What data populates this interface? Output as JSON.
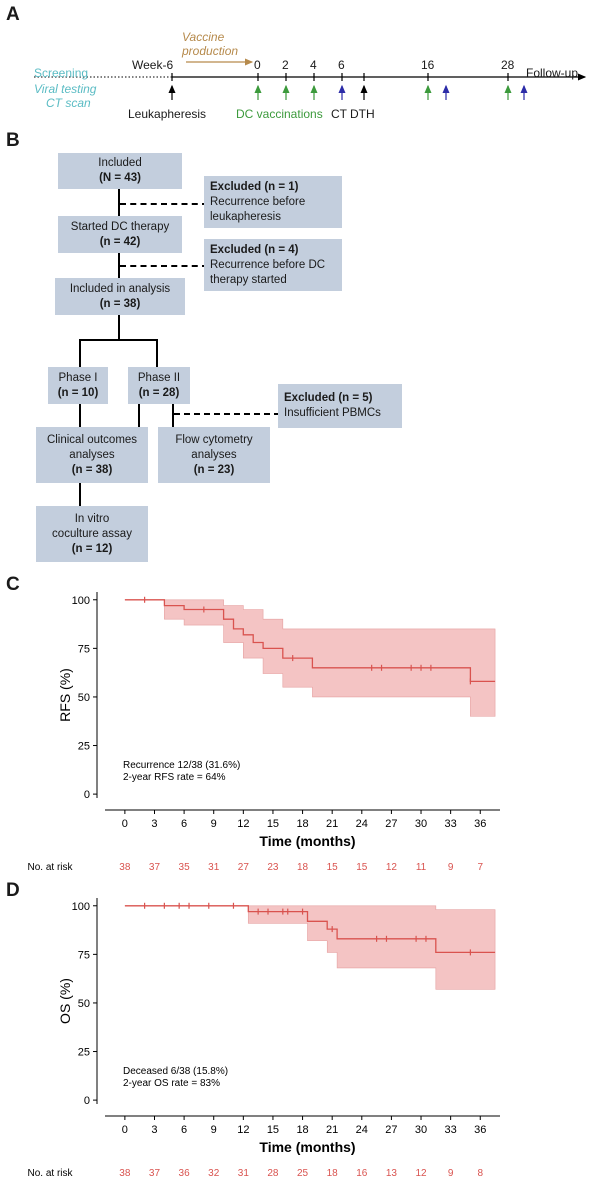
{
  "panels": {
    "a": "A",
    "b": "B",
    "c": "C",
    "d": "D"
  },
  "timeline": {
    "screening": "Screening",
    "viral_testing": "Viral testing",
    "ct_scan": "CT scan",
    "vaccine_production": "Vaccine\nproduction",
    "week6": "Week-6",
    "ticks": [
      "0",
      "2",
      "4",
      "6",
      "16",
      "28"
    ],
    "follow_up": "Follow-up",
    "leukapheresis": "Leukapheresis",
    "dc_vaccinations": "DC vaccinations",
    "ct": "CT",
    "dth": "DTH",
    "colors": {
      "screening": "#5bbcc4",
      "vaccine": "#b68a4c",
      "dc": "#3c9a3c",
      "ct": "#2c2ca8",
      "black": "#000000"
    }
  },
  "flow": {
    "included": {
      "line1": "Included",
      "line2": "(N = 43)"
    },
    "excluded1": {
      "head": "Excluded (n = 1)",
      "line1": "Recurrence before",
      "line2": "leukapheresis"
    },
    "started": {
      "line1": "Started DC therapy",
      "line2": "(n = 42)"
    },
    "excluded2": {
      "head": "Excluded (n = 4)",
      "line1": "Recurrence before DC",
      "line2": "therapy started"
    },
    "analysis": {
      "line1": "Included in analysis",
      "line2": "(n = 38)"
    },
    "phase1": {
      "line1": "Phase I",
      "line2": "(n = 10)"
    },
    "phase2": {
      "line1": "Phase II",
      "line2": "(n = 28)"
    },
    "excluded3": {
      "head": "Excluded (n = 5)",
      "line1": "Insufficient PBMCs"
    },
    "clinical": {
      "line1": "Clinical outcomes",
      "line2": "analyses",
      "line3": "(n = 38)"
    },
    "flowcyto": {
      "line1": "Flow cytometry",
      "line2": "analyses",
      "line3": "(n = 23)"
    },
    "invitro": {
      "line1": "In vitro",
      "line2": "coculture assay",
      "line3": "(n = 12)"
    }
  },
  "chart_data": [
    {
      "type": "line",
      "panel": "C",
      "ylabel": "RFS (%)",
      "xlabel": "Time (months)",
      "xticks": [
        0,
        3,
        6,
        9,
        12,
        15,
        18,
        21,
        24,
        27,
        30,
        33,
        36
      ],
      "yticks": [
        0,
        25,
        50,
        75,
        100
      ],
      "xlim": [
        -1,
        38
      ],
      "ylim": [
        -2,
        104
      ],
      "series": [
        {
          "steps": [
            [
              0,
              100
            ],
            [
              4,
              100
            ],
            [
              4,
              97
            ],
            [
              6,
              97
            ],
            [
              6,
              95
            ],
            [
              10,
              95
            ],
            [
              10,
              90
            ],
            [
              11,
              90
            ],
            [
              11,
              85
            ],
            [
              12,
              85
            ],
            [
              12,
              82
            ],
            [
              13,
              82
            ],
            [
              13,
              78
            ],
            [
              14,
              78
            ],
            [
              14,
              75
            ],
            [
              16,
              75
            ],
            [
              16,
              70
            ],
            [
              19,
              70
            ],
            [
              19,
              65
            ],
            [
              35,
              65
            ],
            [
              35,
              58
            ],
            [
              37.5,
              58
            ]
          ],
          "upper": [
            [
              0,
              100
            ],
            [
              4,
              100
            ],
            [
              4,
              100
            ],
            [
              6,
              100
            ],
            [
              6,
              100
            ],
            [
              10,
              100
            ],
            [
              10,
              97
            ],
            [
              12,
              97
            ],
            [
              12,
              95
            ],
            [
              14,
              95
            ],
            [
              14,
              90
            ],
            [
              16,
              90
            ],
            [
              16,
              85
            ],
            [
              35,
              85
            ],
            [
              37.5,
              85
            ]
          ],
          "lower": [
            [
              0,
              100
            ],
            [
              4,
              100
            ],
            [
              4,
              90
            ],
            [
              6,
              90
            ],
            [
              6,
              87
            ],
            [
              10,
              87
            ],
            [
              10,
              78
            ],
            [
              12,
              78
            ],
            [
              12,
              70
            ],
            [
              14,
              70
            ],
            [
              14,
              62
            ],
            [
              16,
              62
            ],
            [
              16,
              55
            ],
            [
              19,
              55
            ],
            [
              19,
              50
            ],
            [
              35,
              50
            ],
            [
              35,
              40
            ],
            [
              37.5,
              40
            ]
          ],
          "censor": [
            [
              2,
              100
            ],
            [
              8,
              95
            ],
            [
              17,
              70
            ],
            [
              25,
              65
            ],
            [
              26,
              65
            ],
            [
              29,
              65
            ],
            [
              30,
              65
            ],
            [
              31,
              65
            ],
            [
              35,
              58
            ]
          ]
        }
      ],
      "note1": "Recurrence 12/38 (31.6%)",
      "note2": "2-year RFS rate = 64%",
      "at_risk_label": "No. at risk",
      "at_risk": [
        "38",
        "37",
        "35",
        "31",
        "27",
        "23",
        "18",
        "15",
        "15",
        "12",
        "11",
        "9",
        "7"
      ],
      "color": "#d9534f",
      "band_color": "#f4c4c4"
    },
    {
      "type": "line",
      "panel": "D",
      "ylabel": "OS (%)",
      "xlabel": "Time (months)",
      "xticks": [
        0,
        3,
        6,
        9,
        12,
        15,
        18,
        21,
        24,
        27,
        30,
        33,
        36
      ],
      "yticks": [
        0,
        25,
        50,
        75,
        100
      ],
      "xlim": [
        -1,
        38
      ],
      "ylim": [
        -2,
        104
      ],
      "series": [
        {
          "steps": [
            [
              0,
              100
            ],
            [
              12.5,
              100
            ],
            [
              12.5,
              97
            ],
            [
              18.5,
              97
            ],
            [
              18.5,
              92
            ],
            [
              20.5,
              92
            ],
            [
              20.5,
              88
            ],
            [
              21.5,
              88
            ],
            [
              21.5,
              83
            ],
            [
              31.5,
              83
            ],
            [
              31.5,
              76
            ],
            [
              37.5,
              76
            ]
          ],
          "upper": [
            [
              0,
              100
            ],
            [
              12.5,
              100
            ],
            [
              18.5,
              100
            ],
            [
              20.5,
              100
            ],
            [
              37.5,
              100
            ]
          ],
          "lower": [
            [
              0,
              100
            ],
            [
              12.5,
              100
            ],
            [
              12.5,
              91
            ],
            [
              18.5,
              91
            ],
            [
              18.5,
              82
            ],
            [
              20.5,
              82
            ],
            [
              20.5,
              76
            ],
            [
              21.5,
              76
            ],
            [
              21.5,
              68
            ],
            [
              31.5,
              68
            ],
            [
              31.5,
              57
            ],
            [
              37.5,
              57
            ]
          ],
          "upper2": [
            [
              0,
              100
            ],
            [
              31.5,
              100
            ],
            [
              31.5,
              98
            ],
            [
              37.5,
              98
            ]
          ],
          "censor": [
            [
              2,
              100
            ],
            [
              4,
              100
            ],
            [
              5.5,
              100
            ],
            [
              6.5,
              100
            ],
            [
              8.5,
              100
            ],
            [
              11,
              100
            ],
            [
              13.5,
              97
            ],
            [
              14.5,
              97
            ],
            [
              16,
              97
            ],
            [
              16.5,
              97
            ],
            [
              18,
              97
            ],
            [
              21,
              88
            ],
            [
              25.5,
              83
            ],
            [
              26.5,
              83
            ],
            [
              29.5,
              83
            ],
            [
              30.5,
              83
            ],
            [
              35,
              76
            ]
          ]
        }
      ],
      "note1": "Deceased 6/38 (15.8%)",
      "note2": "2-year OS rate = 83%",
      "at_risk_label": "No. at risk",
      "at_risk": [
        "38",
        "37",
        "36",
        "32",
        "31",
        "28",
        "25",
        "18",
        "16",
        "13",
        "12",
        "9",
        "8"
      ],
      "color": "#d9534f",
      "band_color": "#f4c4c4"
    }
  ]
}
